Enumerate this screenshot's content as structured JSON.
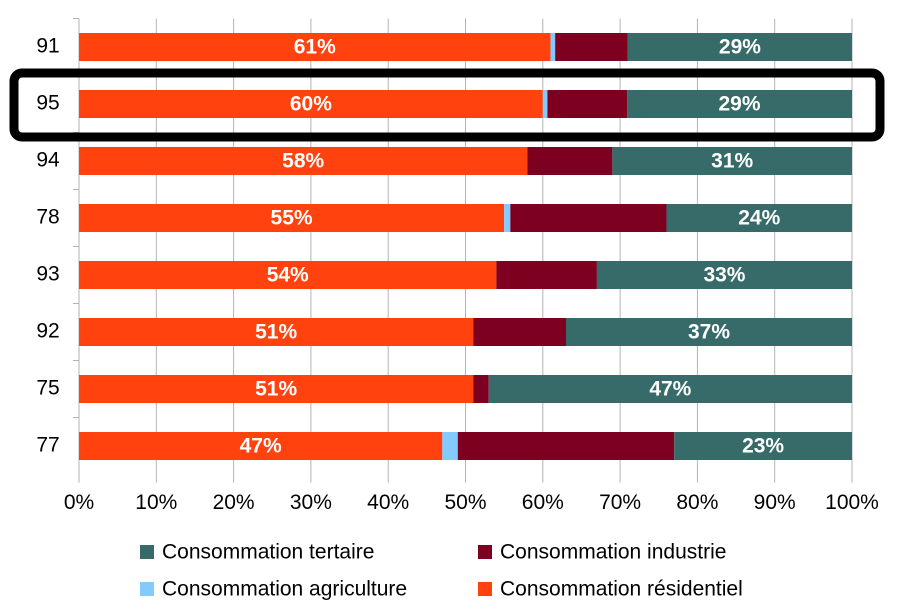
{
  "chart_data": {
    "type": "stacked-bar-horizontal",
    "categories": [
      "91",
      "95",
      "94",
      "78",
      "93",
      "92",
      "75",
      "77"
    ],
    "series": [
      {
        "name": "Consommation résidentiel",
        "color": "#ff420e",
        "values": [
          61,
          60,
          58,
          55,
          54,
          51,
          51,
          47
        ],
        "value_labels": [
          "61%",
          "60%",
          "58%",
          "55%",
          "54%",
          "51%",
          "51%",
          "47%"
        ]
      },
      {
        "name": "Consommation agriculture",
        "color": "#83caff",
        "values": [
          0.6,
          0.6,
          0,
          0.8,
          0,
          0,
          0,
          2
        ]
      },
      {
        "name": "Consommation industrie",
        "color": "#7e0021",
        "values": [
          9.4,
          10.3,
          11,
          20.2,
          13,
          12,
          2,
          28
        ]
      },
      {
        "name": "Consommation tertaire",
        "color": "#376b69",
        "values": [
          29,
          29.1,
          31,
          24,
          33,
          37,
          47,
          23
        ],
        "value_labels": [
          "29%",
          "29%",
          "31%",
          "24%",
          "33%",
          "37%",
          "47%",
          "23%"
        ]
      }
    ],
    "xlim": [
      0,
      100
    ],
    "xticks": [
      {
        "value": 0,
        "label": "0%"
      },
      {
        "value": 10,
        "label": "10%"
      },
      {
        "value": 20,
        "label": "20%"
      },
      {
        "value": 30,
        "label": "30%"
      },
      {
        "value": 40,
        "label": "40%"
      },
      {
        "value": 50,
        "label": "50%"
      },
      {
        "value": 60,
        "label": "60%"
      },
      {
        "value": 70,
        "label": "70%"
      },
      {
        "value": 80,
        "label": "80%"
      },
      {
        "value": 90,
        "label": "90%"
      },
      {
        "value": 100,
        "label": "100%"
      }
    ],
    "grid": true
  }
}
